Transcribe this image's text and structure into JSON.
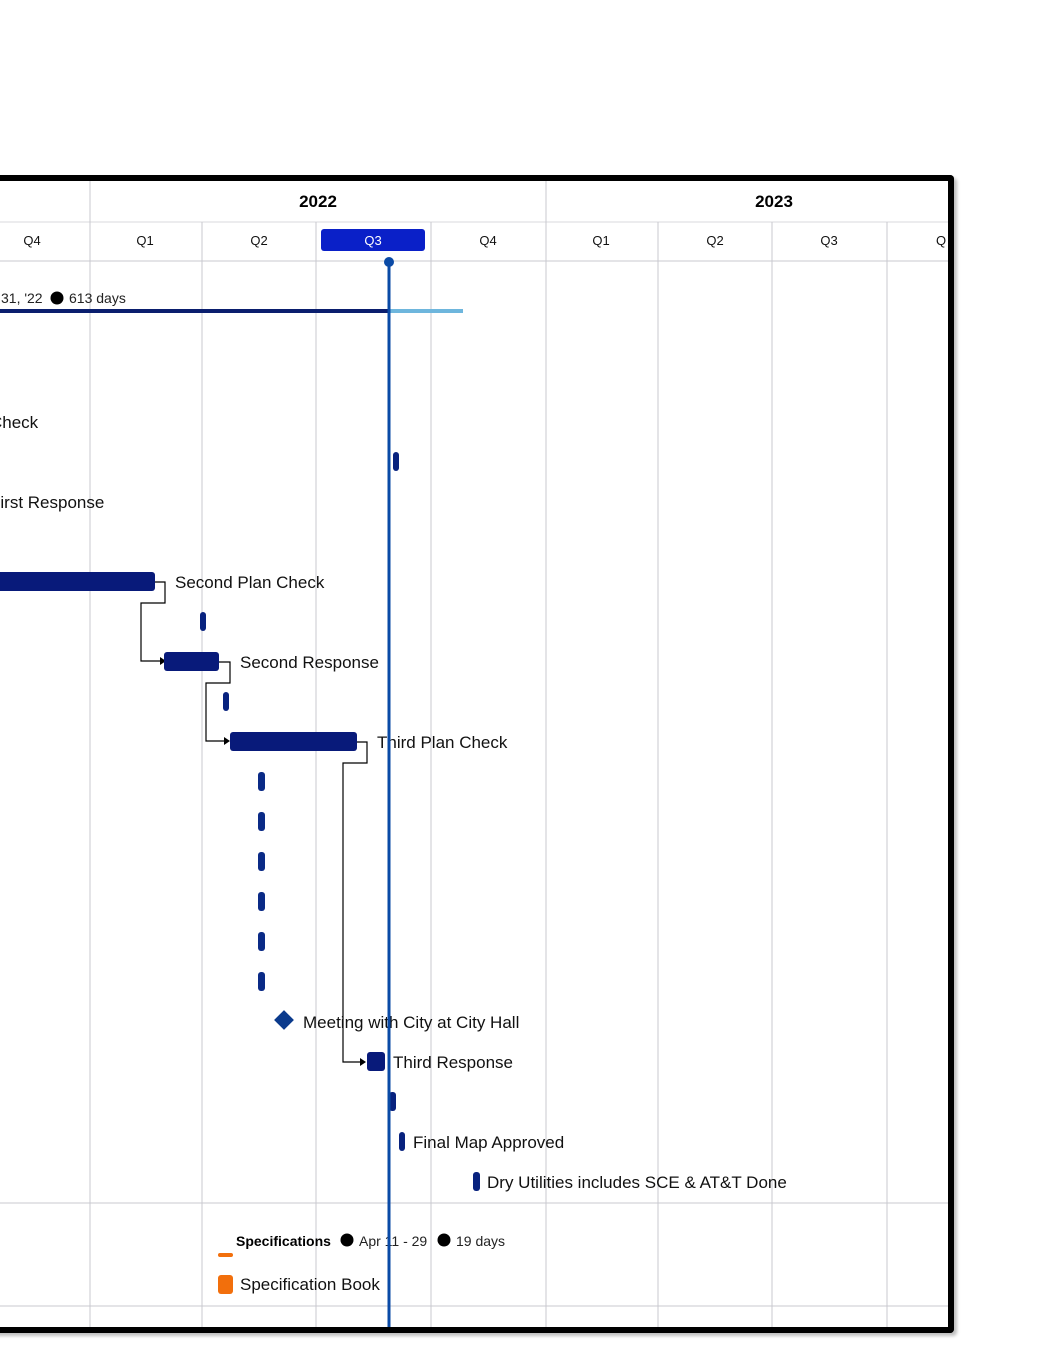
{
  "timeline": {
    "years": [
      {
        "label": "2022",
        "quarters": 4
      },
      {
        "label": "2023",
        "quarters": 4
      }
    ],
    "quarters": [
      "Q4",
      "Q1",
      "Q2",
      "Q3",
      "Q4",
      "Q1",
      "Q2",
      "Q3",
      "Q"
    ],
    "current_quarter_index": 3
  },
  "summary": {
    "text_left": "31, '22",
    "text_right": "613 days",
    "progress_fraction": 0.86
  },
  "tasks": [
    {
      "name": "Check"
    },
    {
      "name": "First Response"
    },
    {
      "name": "Second Plan Check"
    },
    {
      "name": "Second Response"
    },
    {
      "name": "Third Plan Check"
    },
    {
      "name": "Meeting with City at City Hall"
    },
    {
      "name": "Third Response"
    },
    {
      "name": "Final Map Approved"
    },
    {
      "name": "Dry Utilities includes SCE & AT&T Done"
    }
  ],
  "group": {
    "title": "Specifications",
    "dates": "Apr 11 - 29",
    "duration": "19 days",
    "task": "Specification Book"
  },
  "colors": {
    "bar": "#081a7a",
    "milestone": "#0a3a8c",
    "today_line": "#0a4aa6",
    "summary_done": "#0a1e6e",
    "summary_remaining": "#6eb6dd",
    "current_quarter": "#0a20c8",
    "spec": "#f26f0c",
    "grid": "#c9c9cf"
  }
}
